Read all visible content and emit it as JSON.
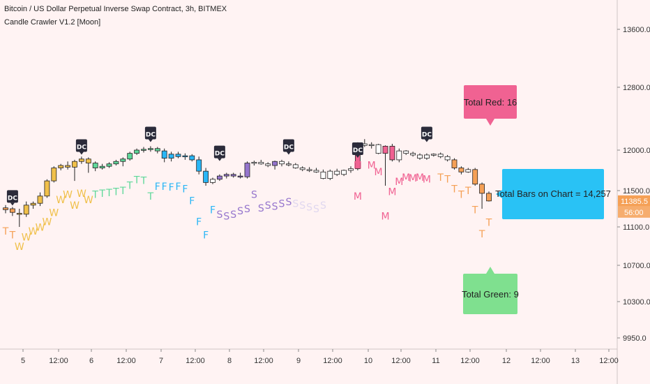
{
  "header": {
    "title": "Bitcoin / US Dollar Perpetual Inverse Swap Contract, 3h, BITMEX",
    "indicator": "Candle Crawler V1.2 [Moon]"
  },
  "price_axis": {
    "ticks": [
      "13600.0",
      "12800.0",
      "12000.0",
      "11500.0",
      "11100.0",
      "10700.0",
      "10300.0",
      "9950.0"
    ],
    "last_price": "11385.5",
    "countdown": "56:00"
  },
  "colors": {
    "background": "#fff3f3",
    "T": "#f5a056",
    "W": "#f0c04a",
    "Tg": "#5fd89a",
    "F": "#29b6f6",
    "S": "#9575cd",
    "Spale": "#e0d7ef",
    "M": "#f06292",
    "T2": "#f5a056",
    "white": "#ffffff",
    "red_box": "#f06292",
    "blue_box": "#29c2f5",
    "green_box": "#7fe08f",
    "dc_box": "#2b2b3a"
  },
  "chart_data": {
    "type": "candlestick",
    "title": "Bitcoin / US Dollar Perpetual Inverse Swap Contract, 3h, BITMEX",
    "ylim": [
      9800,
      13800
    ],
    "x_ticks": [
      "5",
      "12:00",
      "6",
      "12:00",
      "7",
      "12:00",
      "8",
      "12:00",
      "9",
      "12:00",
      "10",
      "12:00",
      "11",
      "12:00",
      "12",
      "12:00",
      "13",
      "12:00"
    ],
    "candles": [
      {
        "o": 11290,
        "h": 11340,
        "l": 11250,
        "c": 11310,
        "col": "T"
      },
      {
        "o": 11300,
        "h": 11320,
        "l": 11220,
        "c": 11260,
        "col": "T"
      },
      {
        "o": 11250,
        "h": 11300,
        "l": 11100,
        "c": 11240,
        "col": "W"
      },
      {
        "o": 11240,
        "h": 11380,
        "l": 11210,
        "c": 11340,
        "col": "W"
      },
      {
        "o": 11340,
        "h": 11380,
        "l": 11300,
        "c": 11360,
        "col": "W"
      },
      {
        "o": 11360,
        "h": 11480,
        "l": 11330,
        "c": 11440,
        "col": "W"
      },
      {
        "o": 11440,
        "h": 11640,
        "l": 11420,
        "c": 11620,
        "col": "W"
      },
      {
        "o": 11620,
        "h": 11800,
        "l": 11600,
        "c": 11780,
        "col": "W"
      },
      {
        "o": 11780,
        "h": 11830,
        "l": 11750,
        "c": 11810,
        "col": "W"
      },
      {
        "o": 11810,
        "h": 11860,
        "l": 11760,
        "c": 11790,
        "col": "W"
      },
      {
        "o": 11790,
        "h": 11880,
        "l": 11620,
        "c": 11860,
        "col": "W"
      },
      {
        "o": 11860,
        "h": 11920,
        "l": 11830,
        "c": 11890,
        "col": "W"
      },
      {
        "o": 11890,
        "h": 11910,
        "l": 11720,
        "c": 11840,
        "col": "W"
      },
      {
        "o": 11840,
        "h": 11860,
        "l": 11740,
        "c": 11780,
        "col": "Tg"
      },
      {
        "o": 11780,
        "h": 11830,
        "l": 11760,
        "c": 11800,
        "col": "Tg"
      },
      {
        "o": 11800,
        "h": 11850,
        "l": 11780,
        "c": 11830,
        "col": "Tg"
      },
      {
        "o": 11830,
        "h": 11880,
        "l": 11810,
        "c": 11860,
        "col": "Tg"
      },
      {
        "o": 11860,
        "h": 11910,
        "l": 11800,
        "c": 11890,
        "col": "Tg"
      },
      {
        "o": 11890,
        "h": 11980,
        "l": 11870,
        "c": 11960,
        "col": "Tg"
      },
      {
        "o": 11960,
        "h": 12020,
        "l": 11940,
        "c": 12000,
        "col": "Tg"
      },
      {
        "o": 12000,
        "h": 12040,
        "l": 11970,
        "c": 12010,
        "col": "Tg"
      },
      {
        "o": 12010,
        "h": 12050,
        "l": 11980,
        "c": 12020,
        "col": "Tg"
      },
      {
        "o": 12020,
        "h": 12040,
        "l": 11960,
        "c": 11990,
        "col": "Tg"
      },
      {
        "o": 11990,
        "h": 12020,
        "l": 11850,
        "c": 11900,
        "col": "F"
      },
      {
        "o": 11900,
        "h": 11980,
        "l": 11860,
        "c": 11950,
        "col": "F"
      },
      {
        "o": 11950,
        "h": 11980,
        "l": 11900,
        "c": 11920,
        "col": "F"
      },
      {
        "o": 11920,
        "h": 11960,
        "l": 11880,
        "c": 11930,
        "col": "F"
      },
      {
        "o": 11930,
        "h": 11950,
        "l": 11860,
        "c": 11880,
        "col": "F"
      },
      {
        "o": 11880,
        "h": 11920,
        "l": 11700,
        "c": 11740,
        "col": "F"
      },
      {
        "o": 11740,
        "h": 11780,
        "l": 11560,
        "c": 11600,
        "col": "F"
      },
      {
        "o": 11600,
        "h": 11660,
        "l": 11580,
        "c": 11640,
        "col": "white"
      },
      {
        "o": 11640,
        "h": 11700,
        "l": 11620,
        "c": 11680,
        "col": "S"
      },
      {
        "o": 11680,
        "h": 11720,
        "l": 11650,
        "c": 11700,
        "col": "S"
      },
      {
        "o": 11700,
        "h": 11720,
        "l": 11660,
        "c": 11680,
        "col": "S"
      },
      {
        "o": 11680,
        "h": 11720,
        "l": 11650,
        "c": 11670,
        "col": "S"
      },
      {
        "o": 11670,
        "h": 11860,
        "l": 11650,
        "c": 11840,
        "col": "S"
      },
      {
        "o": 11840,
        "h": 11870,
        "l": 11810,
        "c": 11850,
        "col": "white"
      },
      {
        "o": 11850,
        "h": 11880,
        "l": 11820,
        "c": 11830,
        "col": "white"
      },
      {
        "o": 11830,
        "h": 11850,
        "l": 11790,
        "c": 11810,
        "col": "white"
      },
      {
        "o": 11810,
        "h": 11870,
        "l": 11760,
        "c": 11860,
        "col": "S"
      },
      {
        "o": 11860,
        "h": 11880,
        "l": 11800,
        "c": 11830,
        "col": "white"
      },
      {
        "o": 11830,
        "h": 11860,
        "l": 11800,
        "c": 11820,
        "col": "white"
      },
      {
        "o": 11820,
        "h": 11840,
        "l": 11770,
        "c": 11780,
        "col": "white"
      },
      {
        "o": 11780,
        "h": 11800,
        "l": 11740,
        "c": 11760,
        "col": "white"
      },
      {
        "o": 11760,
        "h": 11790,
        "l": 11730,
        "c": 11750,
        "col": "white"
      },
      {
        "o": 11750,
        "h": 11780,
        "l": 11720,
        "c": 11730,
        "col": "white"
      },
      {
        "o": 11730,
        "h": 11760,
        "l": 11640,
        "c": 11650,
        "col": "white"
      },
      {
        "o": 11650,
        "h": 11760,
        "l": 11630,
        "c": 11740,
        "col": "white"
      },
      {
        "o": 11740,
        "h": 11770,
        "l": 11680,
        "c": 11700,
        "col": "white"
      },
      {
        "o": 11700,
        "h": 11760,
        "l": 11680,
        "c": 11750,
        "col": "white"
      },
      {
        "o": 11750,
        "h": 11800,
        "l": 11720,
        "c": 11770,
        "col": "white"
      },
      {
        "o": 11770,
        "h": 12100,
        "l": 11750,
        "c": 12080,
        "col": "M"
      },
      {
        "o": 12080,
        "h": 12140,
        "l": 12040,
        "c": 12060,
        "col": "white"
      },
      {
        "o": 12060,
        "h": 12100,
        "l": 12020,
        "c": 12070,
        "col": "white"
      },
      {
        "o": 12070,
        "h": 12080,
        "l": 11950,
        "c": 11960,
        "col": "white"
      },
      {
        "o": 11960,
        "h": 12060,
        "l": 11560,
        "c": 12050,
        "col": "M"
      },
      {
        "o": 12050,
        "h": 12080,
        "l": 11860,
        "c": 11880,
        "col": "M"
      },
      {
        "o": 11880,
        "h": 12020,
        "l": 11850,
        "c": 11990,
        "col": "white"
      },
      {
        "o": 11990,
        "h": 12000,
        "l": 11940,
        "c": 11960,
        "col": "white"
      },
      {
        "o": 11960,
        "h": 11980,
        "l": 11920,
        "c": 11940,
        "col": "white"
      },
      {
        "o": 11940,
        "h": 11960,
        "l": 11880,
        "c": 11900,
        "col": "white"
      },
      {
        "o": 11900,
        "h": 11960,
        "l": 11880,
        "c": 11940,
        "col": "white"
      },
      {
        "o": 11940,
        "h": 11960,
        "l": 11920,
        "c": 11950,
        "col": "white"
      },
      {
        "o": 11950,
        "h": 11970,
        "l": 11900,
        "c": 11920,
        "col": "white"
      },
      {
        "o": 11920,
        "h": 11940,
        "l": 11860,
        "c": 11880,
        "col": "white"
      },
      {
        "o": 11880,
        "h": 11900,
        "l": 11760,
        "c": 11780,
        "col": "T2"
      },
      {
        "o": 11780,
        "h": 11800,
        "l": 11700,
        "c": 11730,
        "col": "T2"
      },
      {
        "o": 11730,
        "h": 11780,
        "l": 11720,
        "c": 11760,
        "col": "white"
      },
      {
        "o": 11760,
        "h": 11780,
        "l": 11560,
        "c": 11580,
        "col": "T2"
      },
      {
        "o": 11580,
        "h": 11600,
        "l": 11300,
        "c": 11470,
        "col": "T2"
      },
      {
        "o": 11470,
        "h": 11490,
        "l": 11380,
        "c": 11386,
        "col": "T2"
      }
    ],
    "markers": [
      {
        "i": 0,
        "txt": "T",
        "col": "T",
        "y": 11020
      },
      {
        "i": 1,
        "txt": "T",
        "col": "T",
        "y": 10980
      },
      {
        "i": 2,
        "txt": "W",
        "col": "W",
        "y": 10860
      },
      {
        "i": 3,
        "txt": "W",
        "col": "W",
        "y": 10960
      },
      {
        "i": 4,
        "txt": "W",
        "col": "W",
        "y": 11020
      },
      {
        "i": 5,
        "txt": "W",
        "col": "W",
        "y": 11060
      },
      {
        "i": 6,
        "txt": "W",
        "col": "W",
        "y": 11120
      },
      {
        "i": 7,
        "txt": "W",
        "col": "W",
        "y": 11220
      },
      {
        "i": 8,
        "txt": "W",
        "col": "W",
        "y": 11360
      },
      {
        "i": 9,
        "txt": "W",
        "col": "W",
        "y": 11420
      },
      {
        "i": 10,
        "txt": "W",
        "col": "W",
        "y": 11300
      },
      {
        "i": 11,
        "txt": "W",
        "col": "W",
        "y": 11430
      },
      {
        "i": 12,
        "txt": "W",
        "col": "W",
        "y": 11360
      },
      {
        "i": 13,
        "txt": "T",
        "col": "Tg",
        "y": 11420
      },
      {
        "i": 14,
        "txt": "T",
        "col": "Tg",
        "y": 11430
      },
      {
        "i": 15,
        "txt": "T",
        "col": "Tg",
        "y": 11440
      },
      {
        "i": 16,
        "txt": "T",
        "col": "Tg",
        "y": 11450
      },
      {
        "i": 17,
        "txt": "T",
        "col": "Tg",
        "y": 11460
      },
      {
        "i": 18,
        "txt": "T",
        "col": "Tg",
        "y": 11520
      },
      {
        "i": 19,
        "txt": "T",
        "col": "Tg",
        "y": 11590
      },
      {
        "i": 20,
        "txt": "T",
        "col": "Tg",
        "y": 11580
      },
      {
        "i": 21,
        "txt": "T",
        "col": "Tg",
        "y": 11400
      },
      {
        "i": 22,
        "txt": "F",
        "col": "F",
        "y": 11510
      },
      {
        "i": 23,
        "txt": "F",
        "col": "F",
        "y": 11510
      },
      {
        "i": 24,
        "txt": "F",
        "col": "F",
        "y": 11500
      },
      {
        "i": 25,
        "txt": "F",
        "col": "F",
        "y": 11510
      },
      {
        "i": 26,
        "txt": "F",
        "col": "F",
        "y": 11480
      },
      {
        "i": 27,
        "txt": "F",
        "col": "F",
        "y": 11350
      },
      {
        "i": 28,
        "txt": "F",
        "col": "F",
        "y": 11120
      },
      {
        "i": 29,
        "txt": "F",
        "col": "F",
        "y": 10980
      },
      {
        "i": 30,
        "txt": "F",
        "col": "F",
        "y": 11250
      },
      {
        "i": 31,
        "txt": "S",
        "col": "S",
        "y": 11200
      },
      {
        "i": 32,
        "txt": "S",
        "col": "S",
        "y": 11180
      },
      {
        "i": 33,
        "txt": "S",
        "col": "S",
        "y": 11200
      },
      {
        "i": 34,
        "txt": "S",
        "col": "S",
        "y": 11240
      },
      {
        "i": 35,
        "txt": "S",
        "col": "S",
        "y": 11260
      },
      {
        "i": 36,
        "txt": "S",
        "col": "S",
        "y": 11420
      },
      {
        "i": 37,
        "txt": "S",
        "col": "S",
        "y": 11270
      },
      {
        "i": 38,
        "txt": "S",
        "col": "S",
        "y": 11300
      },
      {
        "i": 39,
        "txt": "S",
        "col": "S",
        "y": 11290
      },
      {
        "i": 40,
        "txt": "S",
        "col": "S",
        "y": 11320
      },
      {
        "i": 41,
        "txt": "S",
        "col": "S",
        "y": 11340
      },
      {
        "i": 42,
        "txt": "S",
        "col": "Spale",
        "y": 11320
      },
      {
        "i": 43,
        "txt": "S",
        "col": "Spale",
        "y": 11300
      },
      {
        "i": 44,
        "txt": "S",
        "col": "Spale",
        "y": 11280
      },
      {
        "i": 45,
        "txt": "S",
        "col": "Spale",
        "y": 11260
      },
      {
        "i": 46,
        "txt": "S",
        "col": "Spale",
        "y": 11300
      },
      {
        "i": 51,
        "txt": "M",
        "col": "M",
        "y": 11400
      },
      {
        "i": 51,
        "txt": "M",
        "col": "M",
        "y": 11770
      },
      {
        "i": 53,
        "txt": "M",
        "col": "M",
        "y": 11770
      },
      {
        "i": 54,
        "txt": "M",
        "col": "M",
        "y": 11690
      },
      {
        "i": 55,
        "txt": "M",
        "col": "M",
        "y": 11180
      },
      {
        "i": 56,
        "txt": "M",
        "col": "M",
        "y": 11450
      },
      {
        "i": 57,
        "txt": "M",
        "col": "M",
        "y": 11570
      },
      {
        "i": 58,
        "txt": "M",
        "col": "M",
        "y": 11620
      },
      {
        "i": 59,
        "txt": "M",
        "col": "M",
        "y": 11610
      },
      {
        "i": 60,
        "txt": "M",
        "col": "M",
        "y": 11620
      },
      {
        "i": 61,
        "txt": "M",
        "col": "M",
        "y": 11600
      },
      {
        "i": 63,
        "txt": "T",
        "col": "T2",
        "y": 11620
      },
      {
        "i": 64,
        "txt": "T",
        "col": "T2",
        "y": 11600
      },
      {
        "i": 65,
        "txt": "T",
        "col": "T2",
        "y": 11480
      },
      {
        "i": 66,
        "txt": "T",
        "col": "T2",
        "y": 11420
      },
      {
        "i": 67,
        "txt": "T",
        "col": "T2",
        "y": 11460
      },
      {
        "i": 68,
        "txt": "T",
        "col": "T2",
        "y": 11250
      },
      {
        "i": 69,
        "txt": "T",
        "col": "T2",
        "y": 10990
      },
      {
        "i": 70,
        "txt": "T",
        "col": "T2",
        "y": 11110
      }
    ],
    "dc_labels": [
      {
        "i": 1,
        "y": 11420
      },
      {
        "i": 11,
        "y": 12040
      },
      {
        "i": 21,
        "y": 12200
      },
      {
        "i": 31,
        "y": 11960
      },
      {
        "i": 41,
        "y": 12040
      },
      {
        "i": 51,
        "y": 12000
      },
      {
        "i": 61,
        "y": 12200
      }
    ],
    "annotations": {
      "total_red": "Total Red: 16",
      "total_bars": "Total Bars on Chart = 14,257",
      "total_green": "Total Green: 9"
    }
  }
}
